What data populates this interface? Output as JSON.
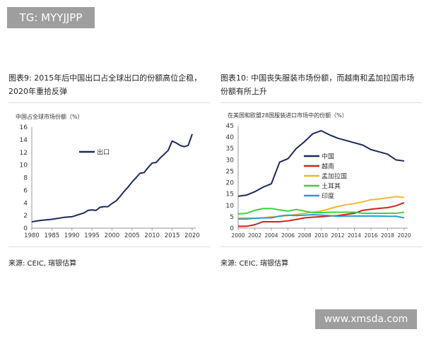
{
  "watermarks": {
    "top": "TG: MYYJJPP",
    "bottom": "www.xmsda.com"
  },
  "left": {
    "title": "图表9: 2015年后中国出口占全球出口的份额高位企稳，2020年重拾反弹",
    "source": "来源: CEIC, 瑞银估算"
  },
  "right": {
    "title": "图表10: 中国丧失服装市场份额，而越南和孟加拉国市场份额有所上升",
    "source": "来源: CEIC, 瑞银估算"
  },
  "chart_data": [
    {
      "type": "line",
      "ylabel": "中国占全球市场份额（%）",
      "ylim": [
        0,
        16
      ],
      "yticks": [
        0,
        2,
        4,
        6,
        8,
        10,
        12,
        14,
        16
      ],
      "xlim": [
        1980,
        2020
      ],
      "xticks": [
        1980,
        1985,
        1990,
        1995,
        2000,
        2005,
        2010,
        2015,
        2020
      ],
      "legend": "top-center",
      "x": [
        1980,
        1982,
        1985,
        1988,
        1990,
        1992,
        1993,
        1994,
        1995,
        1996,
        1997,
        1998,
        1999,
        2000,
        2001,
        2002,
        2003,
        2004,
        2005,
        2006,
        2007,
        2008,
        2009,
        2010,
        2011,
        2012,
        2013,
        2014,
        2015,
        2016,
        2017,
        2018,
        2019,
        2020
      ],
      "series": [
        {
          "name": "出口",
          "color": "#1a2a5a",
          "values": [
            1.0,
            1.2,
            1.4,
            1.7,
            1.8,
            2.2,
            2.4,
            2.8,
            2.9,
            2.8,
            3.3,
            3.4,
            3.4,
            3.9,
            4.3,
            5.0,
            5.8,
            6.5,
            7.3,
            8.0,
            8.7,
            8.8,
            9.6,
            10.3,
            10.4,
            11.1,
            11.7,
            12.3,
            13.8,
            13.5,
            13.1,
            12.9,
            13.1,
            14.9
          ]
        }
      ]
    },
    {
      "type": "line",
      "ylabel": "在美国和欧盟28国服装进口市场中的份额（%）",
      "ylim": [
        0,
        45
      ],
      "yticks": [
        0,
        5,
        10,
        15,
        20,
        25,
        30,
        35,
        40,
        45
      ],
      "xlim": [
        2000,
        2020
      ],
      "xticks": [
        2000,
        2002,
        2004,
        2006,
        2008,
        2010,
        2012,
        2014,
        2016,
        2018,
        2020
      ],
      "legend": "center-left",
      "x": [
        2000,
        2001,
        2002,
        2003,
        2004,
        2005,
        2006,
        2007,
        2008,
        2009,
        2010,
        2011,
        2012,
        2013,
        2014,
        2015,
        2016,
        2017,
        2018,
        2019,
        2020
      ],
      "series": [
        {
          "name": "中国",
          "color": "#1a2a5a",
          "values": [
            14,
            14.5,
            16,
            18,
            19.5,
            29,
            30.5,
            35,
            38,
            41.5,
            42.8,
            41,
            39.5,
            38.5,
            37.5,
            36.5,
            34.5,
            33.5,
            32.5,
            30,
            29.5
          ]
        },
        {
          "name": "越南",
          "color": "#d42020",
          "values": [
            0.8,
            0.8,
            1.5,
            2.8,
            2.8,
            2.8,
            3.2,
            3.8,
            4.5,
            4.8,
            5,
            5.3,
            5.5,
            6,
            6.5,
            7.8,
            8.3,
            8.7,
            9,
            9.8,
            11.2
          ]
        },
        {
          "name": "孟加拉国",
          "color": "#f0b830",
          "values": [
            4.5,
            4.5,
            4.3,
            4.5,
            5,
            5.2,
            5.5,
            6,
            6.5,
            7,
            7.5,
            8.5,
            9.5,
            10.3,
            10.8,
            11.5,
            12.5,
            12.8,
            13.3,
            13.8,
            13.5
          ]
        },
        {
          "name": "土耳其",
          "color": "#40d040",
          "values": [
            6.2,
            6.5,
            7.8,
            8.6,
            8.6,
            8,
            7.5,
            8.2,
            7.5,
            6.8,
            6.8,
            7,
            7,
            7,
            7,
            6.5,
            6.5,
            6.5,
            6.5,
            6.5,
            7
          ]
        },
        {
          "name": "印度",
          "color": "#20a0d0",
          "values": [
            4,
            4,
            4.3,
            4.5,
            4.5,
            5.3,
            5.7,
            5.5,
            5.7,
            5.9,
            5.7,
            5.5,
            5.2,
            5.3,
            5.3,
            5.3,
            5.3,
            5.3,
            5.2,
            5.2,
            4.5
          ]
        }
      ]
    }
  ]
}
